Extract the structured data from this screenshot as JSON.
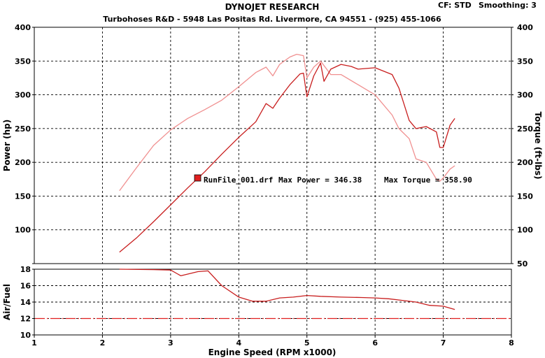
{
  "header": {
    "title": "DYNOJET RESEARCH",
    "subtitle": "Turbohoses R&D - 5948 Las Positas Rd. Livermore, CA 94551 - (925) 455-1066",
    "cf_label": "CF: STD",
    "smoothing_label": "Smoothing: 3"
  },
  "legend": {
    "run_label": "RunFile_001.drf",
    "max_power_text": "Max Power = 346.38",
    "max_torque_text": "Max Torque = 358.90",
    "swatch_color": "#e02020"
  },
  "chart_data": [
    {
      "type": "line",
      "panel": "power-torque",
      "xlabel": "Engine Speed (RPM x1000)",
      "ylabel": "Power (hp)",
      "ylabel_right": "Torque (ft-lbs)",
      "xlim": [
        1,
        8
      ],
      "ylim": [
        50,
        400
      ],
      "ylim_right": [
        50,
        400
      ],
      "xticks": [
        "1",
        "2",
        "3",
        "4",
        "5",
        "6",
        "7",
        "8"
      ],
      "yticks": [
        "50",
        "100",
        "150",
        "200",
        "250",
        "300",
        "350",
        "400"
      ],
      "yticks_right": [
        "50",
        "100",
        "150",
        "200",
        "250",
        "300",
        "350",
        "400"
      ],
      "grid": true,
      "series": [
        {
          "role": "power",
          "color": "#c81e1e",
          "x": [
            2.25,
            2.5,
            2.75,
            3.0,
            3.25,
            3.5,
            3.75,
            4.0,
            4.25,
            4.4,
            4.5,
            4.6,
            4.75,
            4.9,
            4.95,
            5.0,
            5.1,
            5.2,
            5.25,
            5.35,
            5.5,
            5.65,
            5.75,
            6.0,
            6.25,
            6.35,
            6.5,
            6.6,
            6.75,
            6.9,
            6.95,
            7.0,
            7.1,
            7.17
          ],
          "y": [
            67,
            88,
            112,
            137,
            162,
            186,
            212,
            237,
            260,
            287,
            280,
            295,
            315,
            331,
            332,
            297,
            328,
            347,
            320,
            338,
            345,
            342,
            338,
            340,
            330,
            310,
            262,
            250,
            253,
            245,
            222,
            222,
            255,
            265
          ]
        },
        {
          "role": "torque",
          "color": "#f09090",
          "x": [
            2.25,
            2.5,
            2.75,
            3.0,
            3.25,
            3.5,
            3.75,
            4.0,
            4.25,
            4.4,
            4.5,
            4.6,
            4.75,
            4.85,
            4.95,
            5.0,
            5.1,
            5.2,
            5.35,
            5.5,
            5.75,
            6.0,
            6.25,
            6.35,
            6.5,
            6.6,
            6.75,
            6.9,
            6.95,
            7.0,
            7.1,
            7.17
          ],
          "y": [
            158,
            192,
            225,
            248,
            265,
            278,
            292,
            312,
            333,
            341,
            328,
            345,
            356,
            360,
            358,
            325,
            341,
            350,
            330,
            330,
            315,
            300,
            270,
            250,
            235,
            205,
            200,
            175,
            172,
            177,
            190,
            195
          ]
        }
      ]
    },
    {
      "type": "line",
      "panel": "air-fuel",
      "xlabel": "Engine Speed (RPM x1000)",
      "ylabel": "Air/Fuel",
      "xlim": [
        1,
        8
      ],
      "ylim": [
        10,
        18
      ],
      "yticks": [
        "10",
        "12",
        "14",
        "16",
        "18"
      ],
      "grid": true,
      "reference_line": {
        "y": 12.0,
        "color": "#e02020",
        "style": "dash-dot"
      },
      "series": [
        {
          "role": "air-fuel",
          "color": "#c81e1e",
          "x": [
            2.25,
            2.75,
            3.0,
            3.15,
            3.4,
            3.55,
            3.75,
            4.0,
            4.2,
            4.4,
            4.6,
            4.8,
            5.0,
            5.2,
            5.5,
            5.8,
            6.0,
            6.2,
            6.4,
            6.6,
            6.8,
            7.0,
            7.17
          ],
          "y": [
            18.0,
            17.95,
            17.9,
            17.2,
            17.7,
            17.8,
            16.0,
            14.6,
            14.1,
            14.1,
            14.5,
            14.6,
            14.8,
            14.7,
            14.6,
            14.55,
            14.5,
            14.4,
            14.2,
            14.0,
            13.6,
            13.5,
            13.1
          ]
        }
      ]
    }
  ]
}
